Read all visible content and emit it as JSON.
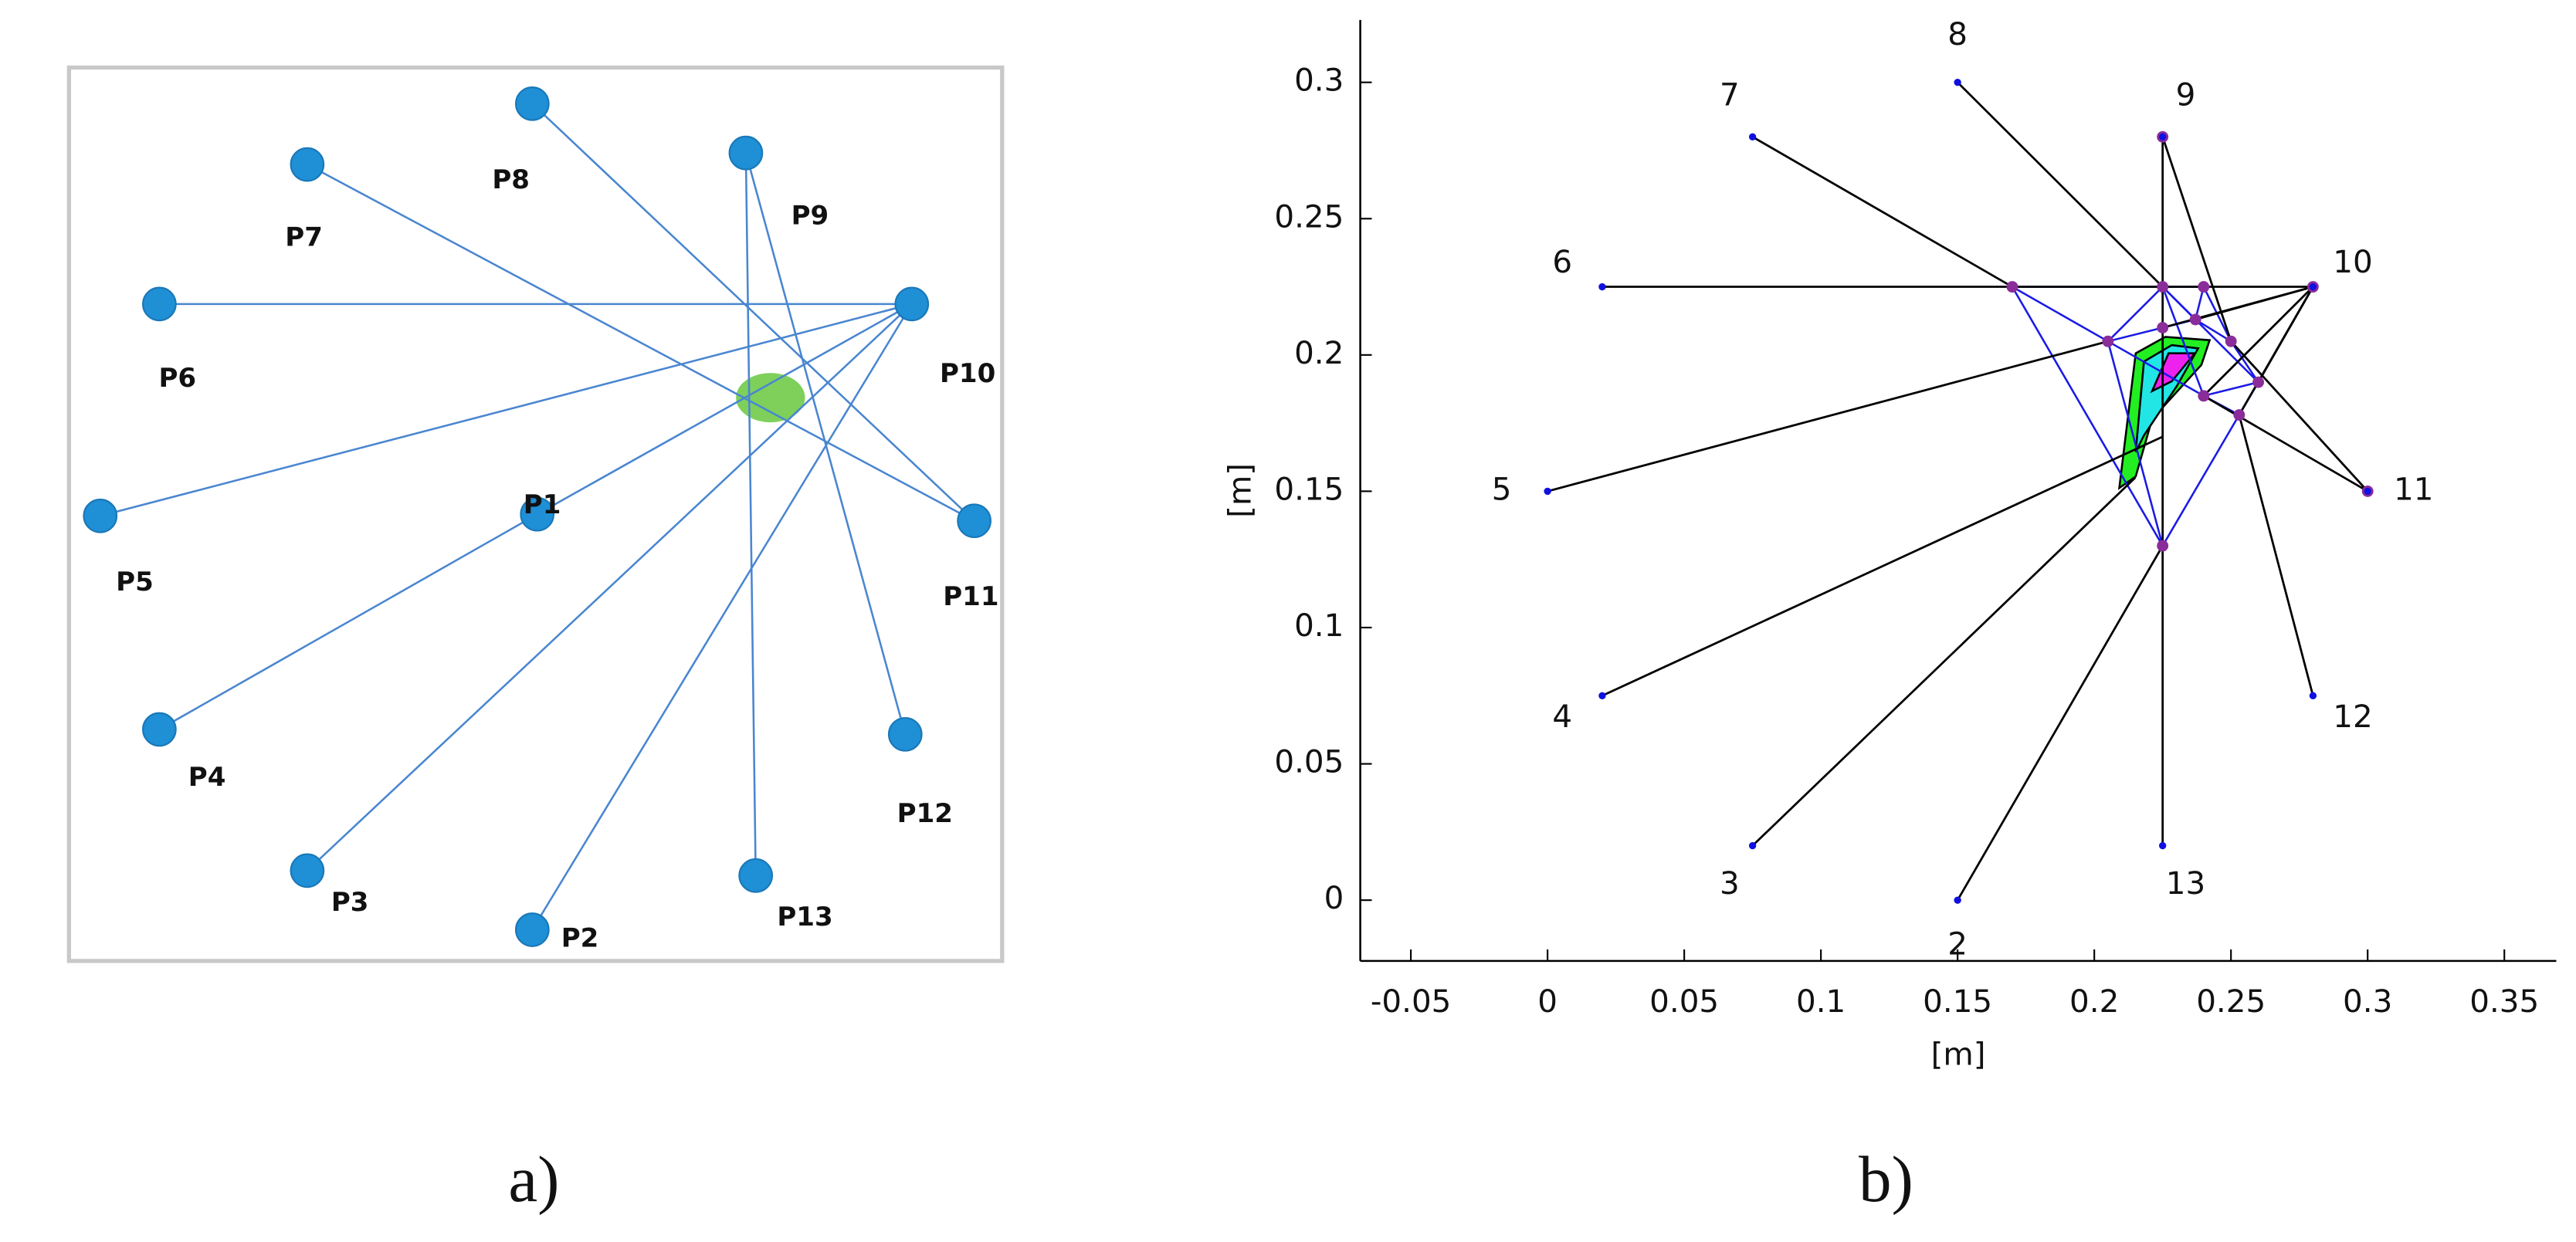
{
  "diagram": {
    "nodes": [
      "P1",
      "P2",
      "P3",
      "P4",
      "P5",
      "P6",
      "P7",
      "P8",
      "P9",
      "P10",
      "P11",
      "P12",
      "P13"
    ]
  },
  "captions": [
    "a)",
    "b)"
  ],
  "chart_data": {
    "type": "scatter",
    "x_label": "[m]",
    "y_label": "[m]",
    "xlim": [
      -0.0685,
      0.369
    ],
    "ylim": [
      -0.0223,
      0.3229
    ],
    "xticks": [
      -0.05,
      0,
      0.05,
      0.1,
      0.15,
      0.2,
      0.25,
      0.3,
      0.35
    ],
    "yticks": [
      0,
      0.05,
      0.1,
      0.15,
      0.2,
      0.25,
      0.3
    ],
    "anchor_color": "#1010e0",
    "node_color": "#8a2c9a",
    "link_color": "#000000",
    "mesh_color": "#1a1ae6",
    "anchors": [
      {
        "label": "2",
        "x": 0.15,
        "y": 0
      },
      {
        "label": "3",
        "x": 0.075,
        "y": 0.02
      },
      {
        "label": "4",
        "x": 0.02,
        "y": 0.075
      },
      {
        "label": "5",
        "x": 0,
        "y": 0.15
      },
      {
        "label": "6",
        "x": 0.02,
        "y": 0.225
      },
      {
        "label": "7",
        "x": 0.075,
        "y": 0.28
      },
      {
        "label": "8",
        "x": 0.15,
        "y": 0.3
      },
      {
        "label": "9",
        "x": 0.225,
        "y": 0.28
      },
      {
        "label": "10",
        "x": 0.28,
        "y": 0.225
      },
      {
        "label": "11",
        "x": 0.3,
        "y": 0.15
      },
      {
        "label": "12",
        "x": 0.28,
        "y": 0.075
      },
      {
        "label": "13",
        "x": 0.225,
        "y": 0.02
      }
    ],
    "nodes": [
      {
        "x": 0.225,
        "y": 0.28
      },
      {
        "x": 0.28,
        "y": 0.225
      },
      {
        "x": 0.3,
        "y": 0.15
      },
      {
        "x": 0.17,
        "y": 0.225
      },
      {
        "x": 0.225,
        "y": 0.225
      },
      {
        "x": 0.24,
        "y": 0.225
      },
      {
        "x": 0.205,
        "y": 0.205
      },
      {
        "x": 0.225,
        "y": 0.21
      },
      {
        "x": 0.237,
        "y": 0.213
      },
      {
        "x": 0.25,
        "y": 0.205
      },
      {
        "x": 0.26,
        "y": 0.19
      },
      {
        "x": 0.24,
        "y": 0.185
      },
      {
        "x": 0.253,
        "y": 0.178
      },
      {
        "x": 0.225,
        "y": 0.13
      }
    ],
    "links": [
      {
        "x": [
          0.15,
          0.225
        ],
        "y": [
          0.3,
          0.225
        ]
      },
      {
        "x": [
          0.075,
          0.17
        ],
        "y": [
          0.28,
          0.225
        ]
      },
      {
        "x": [
          0.02,
          0.28
        ],
        "y": [
          0.225,
          0.225
        ]
      },
      {
        "x": [
          0.225,
          0.225
        ],
        "y": [
          0.28,
          0.225
        ]
      },
      {
        "x": [
          0.225,
          0.25
        ],
        "y": [
          0.28,
          0.205
        ]
      },
      {
        "x": [
          0.28,
          0.225
        ],
        "y": [
          0.225,
          0.21
        ]
      },
      {
        "x": [
          0.28,
          0.237
        ],
        "y": [
          0.225,
          0.213
        ]
      },
      {
        "x": [
          0.28,
          0.26
        ],
        "y": [
          0.225,
          0.19
        ]
      },
      {
        "x": [
          0.28,
          0.24
        ],
        "y": [
          0.225,
          0.185
        ]
      },
      {
        "x": [
          0.28,
          0.253
        ],
        "y": [
          0.225,
          0.178
        ]
      },
      {
        "x": [
          0,
          0.205
        ],
        "y": [
          0.15,
          0.205
        ]
      },
      {
        "x": [
          0.02,
          0.225
        ],
        "y": [
          0.075,
          0.17
        ]
      },
      {
        "x": [
          0.075,
          0.215
        ],
        "y": [
          0.02,
          0.155
        ]
      },
      {
        "x": [
          0.15,
          0.225
        ],
        "y": [
          0,
          0.13
        ]
      },
      {
        "x": [
          0.225,
          0.225
        ],
        "y": [
          0.02,
          0.225
        ]
      },
      {
        "x": [
          0.28,
          0.253
        ],
        "y": [
          0.075,
          0.178
        ]
      },
      {
        "x": [
          0.3,
          0.25
        ],
        "y": [
          0.15,
          0.205
        ]
      },
      {
        "x": [
          0.3,
          0.24
        ],
        "y": [
          0.15,
          0.185
        ]
      }
    ],
    "mesh": [
      {
        "x": [
          0.17,
          0.225
        ],
        "y": [
          0.225,
          0.225
        ]
      },
      {
        "x": [
          0.225,
          0.24
        ],
        "y": [
          0.225,
          0.225
        ]
      },
      {
        "x": [
          0.17,
          0.205
        ],
        "y": [
          0.225,
          0.205
        ]
      },
      {
        "x": [
          0.17,
          0.225
        ],
        "y": [
          0.225,
          0.13
        ]
      },
      {
        "x": [
          0.205,
          0.225
        ],
        "y": [
          0.205,
          0.21
        ]
      },
      {
        "x": [
          0.205,
          0.225
        ],
        "y": [
          0.205,
          0.225
        ]
      },
      {
        "x": [
          0.225,
          0.237
        ],
        "y": [
          0.225,
          0.213
        ]
      },
      {
        "x": [
          0.24,
          0.25
        ],
        "y": [
          0.225,
          0.205
        ]
      },
      {
        "x": [
          0.237,
          0.25
        ],
        "y": [
          0.213,
          0.205
        ]
      },
      {
        "x": [
          0.25,
          0.26
        ],
        "y": [
          0.205,
          0.19
        ]
      },
      {
        "x": [
          0.26,
          0.253
        ],
        "y": [
          0.19,
          0.178
        ]
      },
      {
        "x": [
          0.253,
          0.225
        ],
        "y": [
          0.178,
          0.13
        ]
      },
      {
        "x": [
          0.225,
          0.205
        ],
        "y": [
          0.13,
          0.205
        ]
      },
      {
        "x": [
          0.205,
          0.24
        ],
        "y": [
          0.205,
          0.185
        ]
      },
      {
        "x": [
          0.24,
          0.253
        ],
        "y": [
          0.185,
          0.178
        ]
      },
      {
        "x": [
          0.24,
          0.26
        ],
        "y": [
          0.185,
          0.19
        ]
      },
      {
        "x": [
          0.225,
          0.237
        ],
        "y": [
          0.21,
          0.213
        ]
      },
      {
        "x": [
          0.24,
          0.237
        ],
        "y": [
          0.225,
          0.213
        ]
      },
      {
        "x": [
          0.225,
          0.24
        ],
        "y": [
          0.225,
          0.185
        ]
      },
      {
        "x": [
          0.225,
          0.26
        ],
        "y": [
          0.225,
          0.19
        ]
      }
    ]
  }
}
